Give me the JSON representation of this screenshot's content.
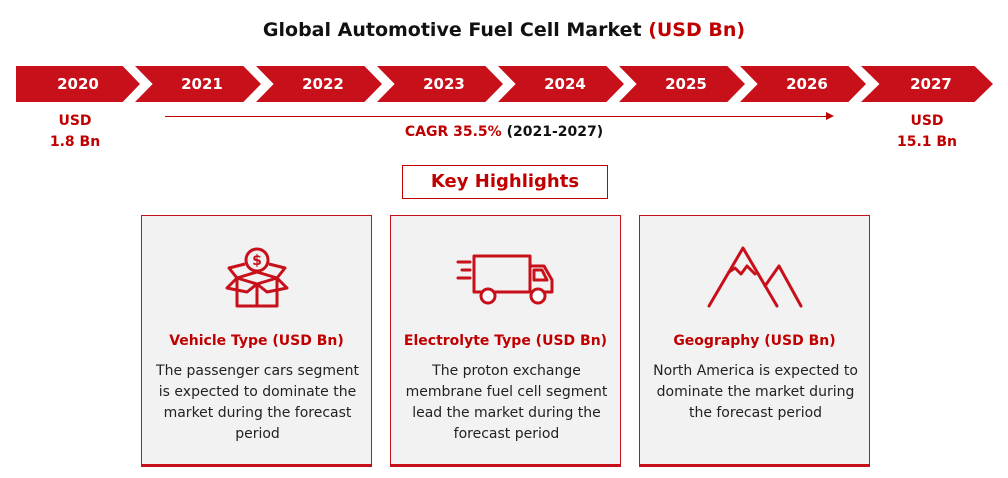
{
  "title": {
    "main": "Global Automotive Fuel Cell Market ",
    "accent": "(USD Bn)"
  },
  "timeline": {
    "years": [
      "2020",
      "2021",
      "2022",
      "2023",
      "2024",
      "2025",
      "2026",
      "2027"
    ],
    "start_value": {
      "line1": "USD",
      "line2": "1.8 Bn"
    },
    "end_value": {
      "line1": "USD",
      "line2": "15.1 Bn"
    },
    "cagr": {
      "label": "CAGR 35.5%",
      "period": " (2021-2027)"
    },
    "color": "#c8101a"
  },
  "key_highlights": {
    "label": "Key Highlights"
  },
  "cards": [
    {
      "icon": "money-box-icon",
      "heading": "Vehicle Type (USD Bn)",
      "body": "The passenger cars segment is expected to dominate the market during the forecast period"
    },
    {
      "icon": "truck-icon",
      "heading": "Electrolyte Type (USD Bn)",
      "body": "The proton exchange membrane fuel cell segment lead the market during the forecast period"
    },
    {
      "icon": "mountain-icon",
      "heading": "Geography (USD Bn)",
      "body": "North America is expected to dominate the market during the forecast period"
    }
  ]
}
